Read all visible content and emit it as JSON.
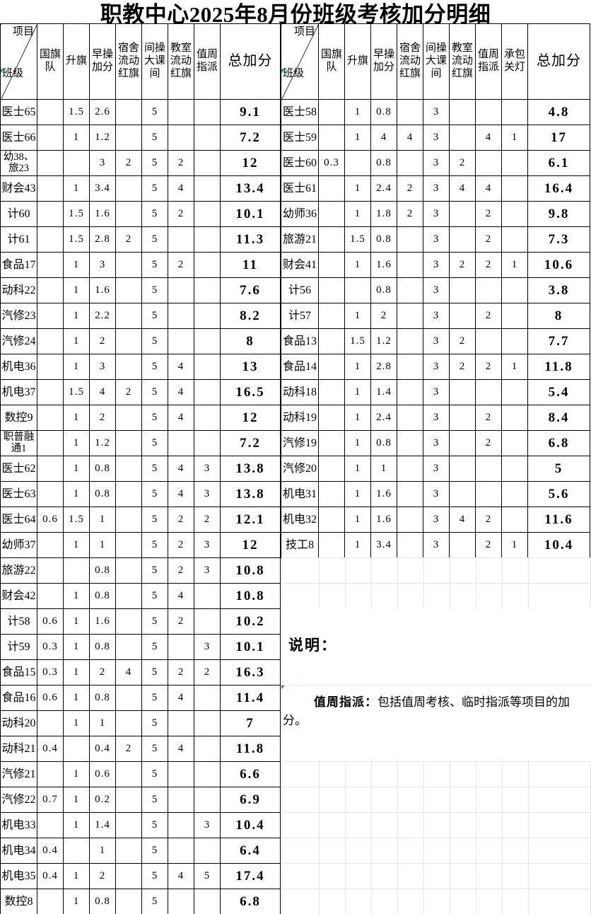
{
  "title": "职教中心2025年8月份班级考核加分明细",
  "corner": {
    "top_label": "项目",
    "bottom_label": "班级"
  },
  "left_table": {
    "columns": [
      "国旗\n队",
      "升旗",
      "早操\n加分",
      "宿舍\n流动\n红旗",
      "间操\n大课\n间",
      "教室\n流动\n红旗",
      "值周\n指派",
      "总加分"
    ],
    "rows": [
      {
        "label": "医士65",
        "cells": [
          "",
          "1.5",
          "2.6",
          "",
          "5",
          "",
          ""
        ],
        "total": "9.1"
      },
      {
        "label": "医士66",
        "cells": [
          "",
          "1",
          "1.2",
          "",
          "5",
          "",
          ""
        ],
        "total": "7.2"
      },
      {
        "label": "幼38、\n旅23",
        "cells": [
          "",
          "",
          "3",
          "2",
          "5",
          "2",
          ""
        ],
        "total": "12"
      },
      {
        "label": "财会43",
        "cells": [
          "",
          "1",
          "3.4",
          "",
          "5",
          "4",
          ""
        ],
        "total": "13.4"
      },
      {
        "label": "计60",
        "cells": [
          "",
          "1.5",
          "1.6",
          "",
          "5",
          "2",
          ""
        ],
        "total": "10.1"
      },
      {
        "label": "计61",
        "cells": [
          "",
          "1.5",
          "2.8",
          "2",
          "5",
          "",
          ""
        ],
        "total": "11.3"
      },
      {
        "label": "食品17",
        "cells": [
          "",
          "1",
          "3",
          "",
          "5",
          "2",
          ""
        ],
        "total": "11"
      },
      {
        "label": "动科22",
        "cells": [
          "",
          "1",
          "1.6",
          "",
          "5",
          "",
          ""
        ],
        "total": "7.6"
      },
      {
        "label": "汽修23",
        "cells": [
          "",
          "1",
          "2.2",
          "",
          "5",
          "",
          ""
        ],
        "total": "8.2"
      },
      {
        "label": "汽修24",
        "cells": [
          "",
          "1",
          "2",
          "",
          "5",
          "",
          ""
        ],
        "total": "8"
      },
      {
        "label": "机电36",
        "cells": [
          "",
          "1",
          "3",
          "",
          "5",
          "4",
          ""
        ],
        "total": "13"
      },
      {
        "label": "机电37",
        "cells": [
          "",
          "1.5",
          "4",
          "2",
          "5",
          "4",
          ""
        ],
        "total": "16.5"
      },
      {
        "label": "数控9",
        "cells": [
          "",
          "1",
          "2",
          "",
          "5",
          "4",
          ""
        ],
        "total": "12"
      },
      {
        "label": "职普融\n通1",
        "cells": [
          "",
          "1",
          "1.2",
          "",
          "5",
          "",
          ""
        ],
        "total": "7.2"
      },
      {
        "label": "医士62",
        "cells": [
          "",
          "1",
          "0.8",
          "",
          "5",
          "4",
          "3"
        ],
        "total": "13.8"
      },
      {
        "label": "医士63",
        "cells": [
          "",
          "1",
          "0.8",
          "",
          "5",
          "4",
          "3"
        ],
        "total": "13.8"
      },
      {
        "label": "医士64",
        "cells": [
          "0.6",
          "1.5",
          "1",
          "",
          "5",
          "2",
          "2"
        ],
        "total": "12.1"
      },
      {
        "label": "幼师37",
        "cells": [
          "",
          "1",
          "1",
          "",
          "5",
          "2",
          "3"
        ],
        "total": "12"
      },
      {
        "label": "旅游22",
        "cells": [
          "",
          "",
          "0.8",
          "",
          "5",
          "2",
          "3"
        ],
        "total": "10.8"
      },
      {
        "label": "财会42",
        "cells": [
          "",
          "1",
          "0.8",
          "",
          "5",
          "4",
          ""
        ],
        "total": "10.8"
      },
      {
        "label": "计58",
        "cells": [
          "0.6",
          "1",
          "1.6",
          "",
          "5",
          "2",
          ""
        ],
        "total": "10.2"
      },
      {
        "label": "计59",
        "cells": [
          "0.3",
          "1",
          "0.8",
          "",
          "5",
          "",
          "3"
        ],
        "total": "10.1"
      },
      {
        "label": "食品15",
        "cells": [
          "0.3",
          "1",
          "2",
          "4",
          "5",
          "2",
          "2"
        ],
        "total": "16.3"
      },
      {
        "label": "食品16",
        "cells": [
          "0.6",
          "1",
          "0.8",
          "",
          "5",
          "4",
          ""
        ],
        "total": "11.4"
      },
      {
        "label": "动科20",
        "cells": [
          "",
          "1",
          "1",
          "",
          "5",
          "",
          ""
        ],
        "total": "7"
      },
      {
        "label": "动科21",
        "cells": [
          "0.4",
          "",
          "0.4",
          "2",
          "5",
          "4",
          ""
        ],
        "total": "11.8"
      },
      {
        "label": "汽修21",
        "cells": [
          "",
          "1",
          "0.6",
          "",
          "5",
          "",
          ""
        ],
        "total": "6.6"
      },
      {
        "label": "汽修22",
        "cells": [
          "0.7",
          "1",
          "0.2",
          "",
          "5",
          "",
          ""
        ],
        "total": "6.9"
      },
      {
        "label": "机电33",
        "cells": [
          "",
          "1",
          "1.4",
          "",
          "5",
          "",
          "3"
        ],
        "total": "10.4"
      },
      {
        "label": "机电34",
        "cells": [
          "0.4",
          "",
          "1",
          "",
          "5",
          "",
          ""
        ],
        "total": "6.4"
      },
      {
        "label": "机电35",
        "cells": [
          "0.4",
          "1",
          "2",
          "",
          "5",
          "4",
          "5"
        ],
        "total": "17.4"
      },
      {
        "label": "数控8",
        "cells": [
          "",
          "1",
          "0.8",
          "",
          "5",
          "",
          ""
        ],
        "total": "6.8"
      }
    ]
  },
  "right_table": {
    "columns": [
      "国旗\n队",
      "升旗",
      "早操\n加分",
      "宿舍\n流动\n红旗",
      "间操\n大课\n间",
      "教室\n流动\n红旗",
      "值周\n指派",
      "承包\n关灯",
      "总加分"
    ],
    "rows": [
      {
        "label": "医士58",
        "cells": [
          "",
          "1",
          "0.8",
          "",
          "3",
          "",
          "",
          ""
        ],
        "total": "4.8"
      },
      {
        "label": "医士59",
        "cells": [
          "",
          "1",
          "4",
          "4",
          "3",
          "",
          "4",
          "1"
        ],
        "total": "17"
      },
      {
        "label": "医士60",
        "cells": [
          "0.3",
          "",
          "0.8",
          "",
          "3",
          "2",
          "",
          ""
        ],
        "total": "6.1"
      },
      {
        "label": "医士61",
        "cells": [
          "",
          "1",
          "2.4",
          "2",
          "3",
          "4",
          "4",
          ""
        ],
        "total": "16.4"
      },
      {
        "label": "幼师36",
        "cells": [
          "",
          "1",
          "1.8",
          "2",
          "3",
          "",
          "2",
          ""
        ],
        "total": "9.8"
      },
      {
        "label": "旅游21",
        "cells": [
          "",
          "1.5",
          "0.8",
          "",
          "3",
          "",
          "2",
          ""
        ],
        "total": "7.3"
      },
      {
        "label": "财会41",
        "cells": [
          "",
          "1",
          "1.6",
          "",
          "3",
          "2",
          "2",
          "1"
        ],
        "total": "10.6"
      },
      {
        "label": "计56",
        "cells": [
          "",
          "",
          "0.8",
          "",
          "3",
          "",
          "",
          ""
        ],
        "total": "3.8"
      },
      {
        "label": "计57",
        "cells": [
          "",
          "1",
          "2",
          "",
          "3",
          "",
          "2",
          ""
        ],
        "total": "8"
      },
      {
        "label": "食品13",
        "cells": [
          "",
          "1.5",
          "1.2",
          "",
          "3",
          "2",
          "",
          ""
        ],
        "total": "7.7"
      },
      {
        "label": "食品14",
        "cells": [
          "",
          "1",
          "2.8",
          "",
          "3",
          "2",
          "2",
          "1"
        ],
        "total": "11.8"
      },
      {
        "label": "动科18",
        "cells": [
          "",
          "1",
          "1.4",
          "",
          "3",
          "",
          "",
          ""
        ],
        "total": "5.4"
      },
      {
        "label": "动科19",
        "cells": [
          "",
          "1",
          "2.4",
          "",
          "3",
          "",
          "2",
          ""
        ],
        "total": "8.4"
      },
      {
        "label": "汽修19",
        "cells": [
          "",
          "1",
          "0.8",
          "",
          "3",
          "",
          "2",
          ""
        ],
        "total": "6.8"
      },
      {
        "label": "汽修20",
        "cells": [
          "",
          "1",
          "1",
          "",
          "3",
          "",
          "",
          ""
        ],
        "total": "5"
      },
      {
        "label": "机电31",
        "cells": [
          "",
          "1",
          "1.6",
          "",
          "3",
          "",
          "",
          ""
        ],
        "total": "5.6"
      },
      {
        "label": "机电32",
        "cells": [
          "",
          "1",
          "1.6",
          "",
          "3",
          "4",
          "2",
          ""
        ],
        "total": "11.6"
      },
      {
        "label": "技工8",
        "cells": [
          "",
          "1",
          "3.4",
          "",
          "3",
          "",
          "2",
          "1"
        ],
        "total": "10.4"
      }
    ]
  },
  "notes": {
    "heading": "说明：",
    "item_bold": "值周指派：",
    "item_text": "包括值周考核、临时指派等项目的加分。"
  },
  "colors": {
    "table_border": "#000000",
    "faint_grid_line": "#e6e6e6",
    "cell_flag_green": "#00a650"
  }
}
